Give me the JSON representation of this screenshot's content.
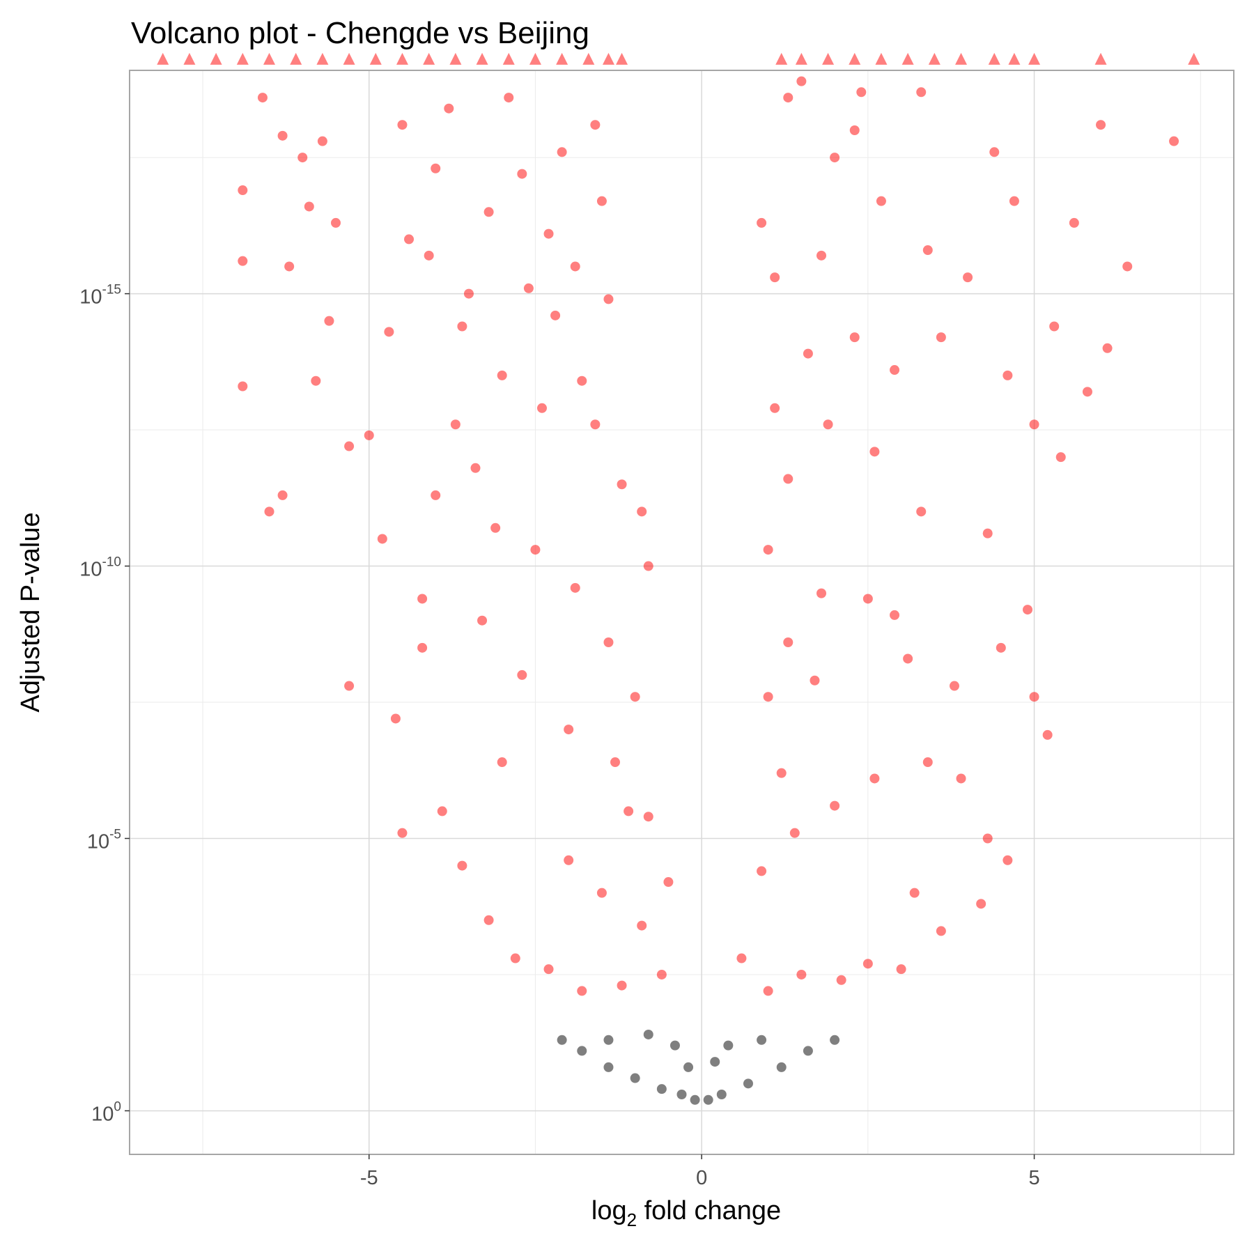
{
  "chart_data": {
    "type": "scatter",
    "title": "Volcano plot - Chengde vs Beijing",
    "xlabel": {
      "main": "log",
      "sub": "2",
      "rest": " fold change"
    },
    "ylabel": "Adjusted P-value",
    "x_axis": {
      "range": [
        -8.6,
        8.0
      ],
      "ticks": [
        -5,
        0,
        5
      ],
      "tick_labels": [
        "-5",
        "0",
        "5"
      ],
      "minor_ticks": [
        -7.5,
        -2.5,
        2.5,
        7.5
      ]
    },
    "y_axis": {
      "scale": "log10",
      "range_neg_log10": [
        -0.8,
        19.1
      ],
      "ticks_neg_log10": [
        0,
        5,
        10,
        15
      ],
      "tick_labels": [
        {
          "base": "10",
          "exp": "0"
        },
        {
          "base": "10",
          "exp": "-5"
        },
        {
          "base": "10",
          "exp": "-10"
        },
        {
          "base": "10",
          "exp": "-15"
        }
      ],
      "minor_ticks_neg_log10": [
        2.5,
        7.5,
        12.5,
        17.5
      ]
    },
    "grid": true,
    "legend": "none",
    "colors": {
      "significant": "#ff0000",
      "not_significant": "#000000",
      "capped": "#ff0000",
      "grid_major": "#d9d9d9",
      "grid_minor": "#ebebeb",
      "panel_border": "#a6a6a6"
    },
    "series": [
      {
        "marker": "circle",
        "color": "#ff0000",
        "points": [
          [
            -6.9,
            16.9
          ],
          [
            -6.9,
            13.3
          ],
          [
            -6.2,
            15.5
          ],
          [
            -6.0,
            17.5
          ],
          [
            -5.8,
            13.4
          ],
          [
            -5.5,
            16.3
          ],
          [
            -5.9,
            16.6
          ],
          [
            -6.5,
            11.0
          ],
          [
            -5.6,
            14.5
          ],
          [
            -5.3,
            12.2
          ],
          [
            -5.0,
            12.4
          ],
          [
            -4.8,
            10.5
          ],
          [
            -4.2,
            8.5
          ],
          [
            -5.3,
            7.8
          ],
          [
            -4.6,
            7.2
          ],
          [
            -4.5,
            5.1
          ],
          [
            -3.9,
            5.5
          ],
          [
            -3.6,
            4.5
          ],
          [
            -3.2,
            3.5
          ],
          [
            -2.8,
            2.8
          ],
          [
            -2.3,
            2.6
          ],
          [
            -1.8,
            2.2
          ],
          [
            -1.2,
            2.3
          ],
          [
            -0.6,
            2.5
          ],
          [
            -0.5,
            4.2
          ],
          [
            -0.8,
            5.4
          ],
          [
            -1.3,
            6.4
          ],
          [
            -2.0,
            7.0
          ],
          [
            -2.7,
            8.0
          ],
          [
            -3.3,
            9.0
          ],
          [
            -3.1,
            10.7
          ],
          [
            -2.5,
            10.3
          ],
          [
            -1.9,
            9.6
          ],
          [
            -1.4,
            8.6
          ],
          [
            -1.0,
            7.6
          ],
          [
            -0.8,
            10.0
          ],
          [
            -1.2,
            11.5
          ],
          [
            -1.6,
            12.6
          ],
          [
            -2.4,
            12.9
          ],
          [
            -3.0,
            13.5
          ],
          [
            -3.7,
            12.6
          ],
          [
            -4.0,
            11.3
          ],
          [
            -3.4,
            11.8
          ],
          [
            -2.2,
            14.6
          ],
          [
            -2.6,
            15.1
          ],
          [
            -1.9,
            15.5
          ],
          [
            -1.4,
            14.9
          ],
          [
            -3.5,
            15.0
          ],
          [
            -4.1,
            15.7
          ],
          [
            -4.4,
            16.0
          ],
          [
            -3.2,
            16.5
          ],
          [
            -2.7,
            17.2
          ],
          [
            -2.1,
            17.6
          ],
          [
            -1.6,
            18.1
          ],
          [
            -3.8,
            18.4
          ],
          [
            -4.5,
            18.1
          ],
          [
            -1.5,
            16.7
          ],
          [
            -1.8,
            13.4
          ],
          [
            -0.9,
            11.0
          ],
          [
            -4.7,
            14.3
          ],
          [
            -4.0,
            17.3
          ],
          [
            -2.9,
            18.6
          ],
          [
            -3.6,
            14.4
          ],
          [
            -2.3,
            16.1
          ],
          [
            -4.2,
            9.4
          ],
          [
            -3.0,
            6.4
          ],
          [
            -2.0,
            4.6
          ],
          [
            -1.5,
            4.0
          ],
          [
            -0.9,
            3.4
          ],
          [
            -1.1,
            5.5
          ],
          [
            -5.7,
            17.8
          ],
          [
            -6.3,
            17.9
          ],
          [
            -6.6,
            18.6
          ],
          [
            -6.3,
            11.3
          ],
          [
            -6.9,
            15.6
          ],
          [
            1.0,
            2.2
          ],
          [
            1.5,
            2.5
          ],
          [
            2.1,
            2.4
          ],
          [
            2.5,
            2.7
          ],
          [
            3.0,
            2.6
          ],
          [
            0.6,
            2.8
          ],
          [
            0.9,
            4.4
          ],
          [
            1.4,
            5.1
          ],
          [
            2.0,
            5.6
          ],
          [
            2.6,
            6.1
          ],
          [
            3.4,
            6.4
          ],
          [
            3.9,
            6.1
          ],
          [
            4.3,
            5.0
          ],
          [
            4.6,
            4.6
          ],
          [
            4.2,
            3.8
          ],
          [
            3.6,
            3.3
          ],
          [
            3.2,
            4.0
          ],
          [
            1.2,
            6.2
          ],
          [
            1.0,
            7.6
          ],
          [
            1.3,
            8.6
          ],
          [
            1.8,
            9.5
          ],
          [
            2.5,
            9.4
          ],
          [
            3.1,
            8.3
          ],
          [
            3.8,
            7.8
          ],
          [
            4.5,
            8.5
          ],
          [
            5.0,
            7.6
          ],
          [
            5.2,
            6.9
          ],
          [
            4.9,
            9.2
          ],
          [
            4.3,
            10.6
          ],
          [
            3.3,
            11.0
          ],
          [
            2.6,
            12.1
          ],
          [
            1.9,
            12.6
          ],
          [
            1.3,
            11.6
          ],
          [
            1.0,
            10.3
          ],
          [
            1.1,
            12.9
          ],
          [
            1.6,
            13.9
          ],
          [
            2.3,
            14.2
          ],
          [
            2.9,
            13.6
          ],
          [
            3.6,
            14.2
          ],
          [
            4.0,
            15.3
          ],
          [
            4.6,
            13.5
          ],
          [
            5.0,
            12.6
          ],
          [
            5.4,
            12.0
          ],
          [
            5.8,
            13.2
          ],
          [
            6.1,
            14.0
          ],
          [
            5.3,
            14.4
          ],
          [
            6.0,
            18.1
          ],
          [
            2.0,
            17.5
          ],
          [
            1.3,
            18.6
          ],
          [
            2.3,
            18.0
          ],
          [
            2.7,
            16.7
          ],
          [
            1.8,
            15.7
          ],
          [
            1.1,
            15.3
          ],
          [
            3.4,
            15.8
          ],
          [
            4.4,
            17.6
          ],
          [
            4.7,
            16.7
          ],
          [
            5.6,
            16.3
          ],
          [
            7.1,
            17.8
          ],
          [
            6.4,
            15.5
          ],
          [
            1.5,
            18.9
          ],
          [
            2.4,
            18.7
          ],
          [
            0.9,
            16.3
          ],
          [
            3.3,
            18.7
          ],
          [
            1.7,
            7.9
          ],
          [
            2.9,
            9.1
          ]
        ]
      },
      {
        "marker": "circle",
        "color": "#000000",
        "points": [
          [
            -2.1,
            1.3
          ],
          [
            -1.8,
            1.1
          ],
          [
            -1.4,
            0.8
          ],
          [
            -1.0,
            0.6
          ],
          [
            -0.6,
            0.4
          ],
          [
            -0.3,
            0.3
          ],
          [
            -0.1,
            0.2
          ],
          [
            -0.4,
            1.2
          ],
          [
            -0.8,
            1.4
          ],
          [
            -1.4,
            1.3
          ],
          [
            -0.2,
            0.8
          ],
          [
            0.1,
            0.2
          ],
          [
            0.3,
            0.3
          ],
          [
            0.7,
            0.5
          ],
          [
            1.2,
            0.8
          ],
          [
            1.6,
            1.1
          ],
          [
            2.0,
            1.3
          ],
          [
            0.4,
            1.2
          ],
          [
            0.9,
            1.3
          ],
          [
            0.2,
            0.9
          ]
        ]
      },
      {
        "marker": "triangle",
        "color": "#ff0000",
        "points": [
          [
            -8.1,
            19.3
          ],
          [
            -7.7,
            19.3
          ],
          [
            -7.3,
            19.3
          ],
          [
            -6.9,
            19.3
          ],
          [
            -6.5,
            19.3
          ],
          [
            -6.1,
            19.3
          ],
          [
            -5.7,
            19.3
          ],
          [
            -5.3,
            19.3
          ],
          [
            -4.9,
            19.3
          ],
          [
            -4.5,
            19.3
          ],
          [
            -4.1,
            19.3
          ],
          [
            -3.7,
            19.3
          ],
          [
            -3.3,
            19.3
          ],
          [
            -2.9,
            19.3
          ],
          [
            -2.5,
            19.3
          ],
          [
            -2.1,
            19.3
          ],
          [
            -1.7,
            19.3
          ],
          [
            -1.4,
            19.3
          ],
          [
            -1.2,
            19.3
          ],
          [
            1.2,
            19.3
          ],
          [
            1.5,
            19.3
          ],
          [
            1.9,
            19.3
          ],
          [
            2.3,
            19.3
          ],
          [
            2.7,
            19.3
          ],
          [
            3.1,
            19.3
          ],
          [
            3.5,
            19.3
          ],
          [
            3.9,
            19.3
          ],
          [
            4.4,
            19.3
          ],
          [
            4.7,
            19.3
          ],
          [
            5.0,
            19.3
          ],
          [
            6.0,
            19.3
          ],
          [
            7.4,
            19.3
          ]
        ]
      }
    ]
  }
}
